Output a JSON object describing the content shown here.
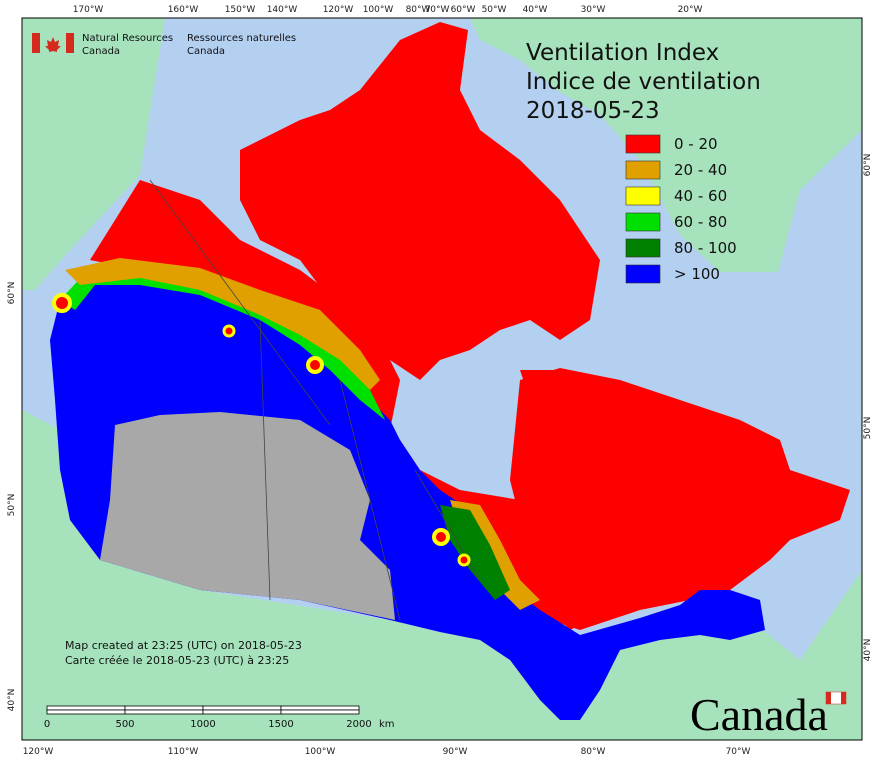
{
  "agency_en": [
    "Natural Resources",
    "Canada"
  ],
  "agency_fr": [
    "Ressources naturelles",
    "Canada"
  ],
  "title": [
    "Ventilation Index",
    "Indice de ventilation",
    "2018-05-23"
  ],
  "legend": [
    {
      "label": "0 - 20",
      "color": "#ff0000"
    },
    {
      "label": "20 - 40",
      "color": "#e0a000"
    },
    {
      "label": "40 - 60",
      "color": "#ffff00"
    },
    {
      "label": "60 - 80",
      "color": "#00e000"
    },
    {
      "label": "80 - 100",
      "color": "#008000"
    },
    {
      "label": "> 100",
      "color": "#0000ff"
    }
  ],
  "graticule": {
    "top": [
      "170°W",
      "160°W",
      "150°W",
      "140°W",
      "120°W",
      "100°W",
      "80°W",
      "70°W",
      "60°W",
      "50°W",
      "40°W",
      "30°W",
      "20°W"
    ],
    "bottom": [
      "120°W",
      "110°W",
      "100°W",
      "90°W",
      "80°W",
      "70°W"
    ],
    "left": [
      "60°N",
      "50°N",
      "40°N"
    ],
    "right": [
      "60°N",
      "50°N",
      "40°N"
    ]
  },
  "credits": [
    "Map created at 23:25 (UTC) on 2018-05-23",
    "Carte créée le 2018-05-23 (UTC) à 23:25"
  ],
  "scale_bar": {
    "ticks": [
      "0",
      "500",
      "1000",
      "1500",
      "2000"
    ],
    "unit": "km"
  },
  "wordmark": "Canada"
}
